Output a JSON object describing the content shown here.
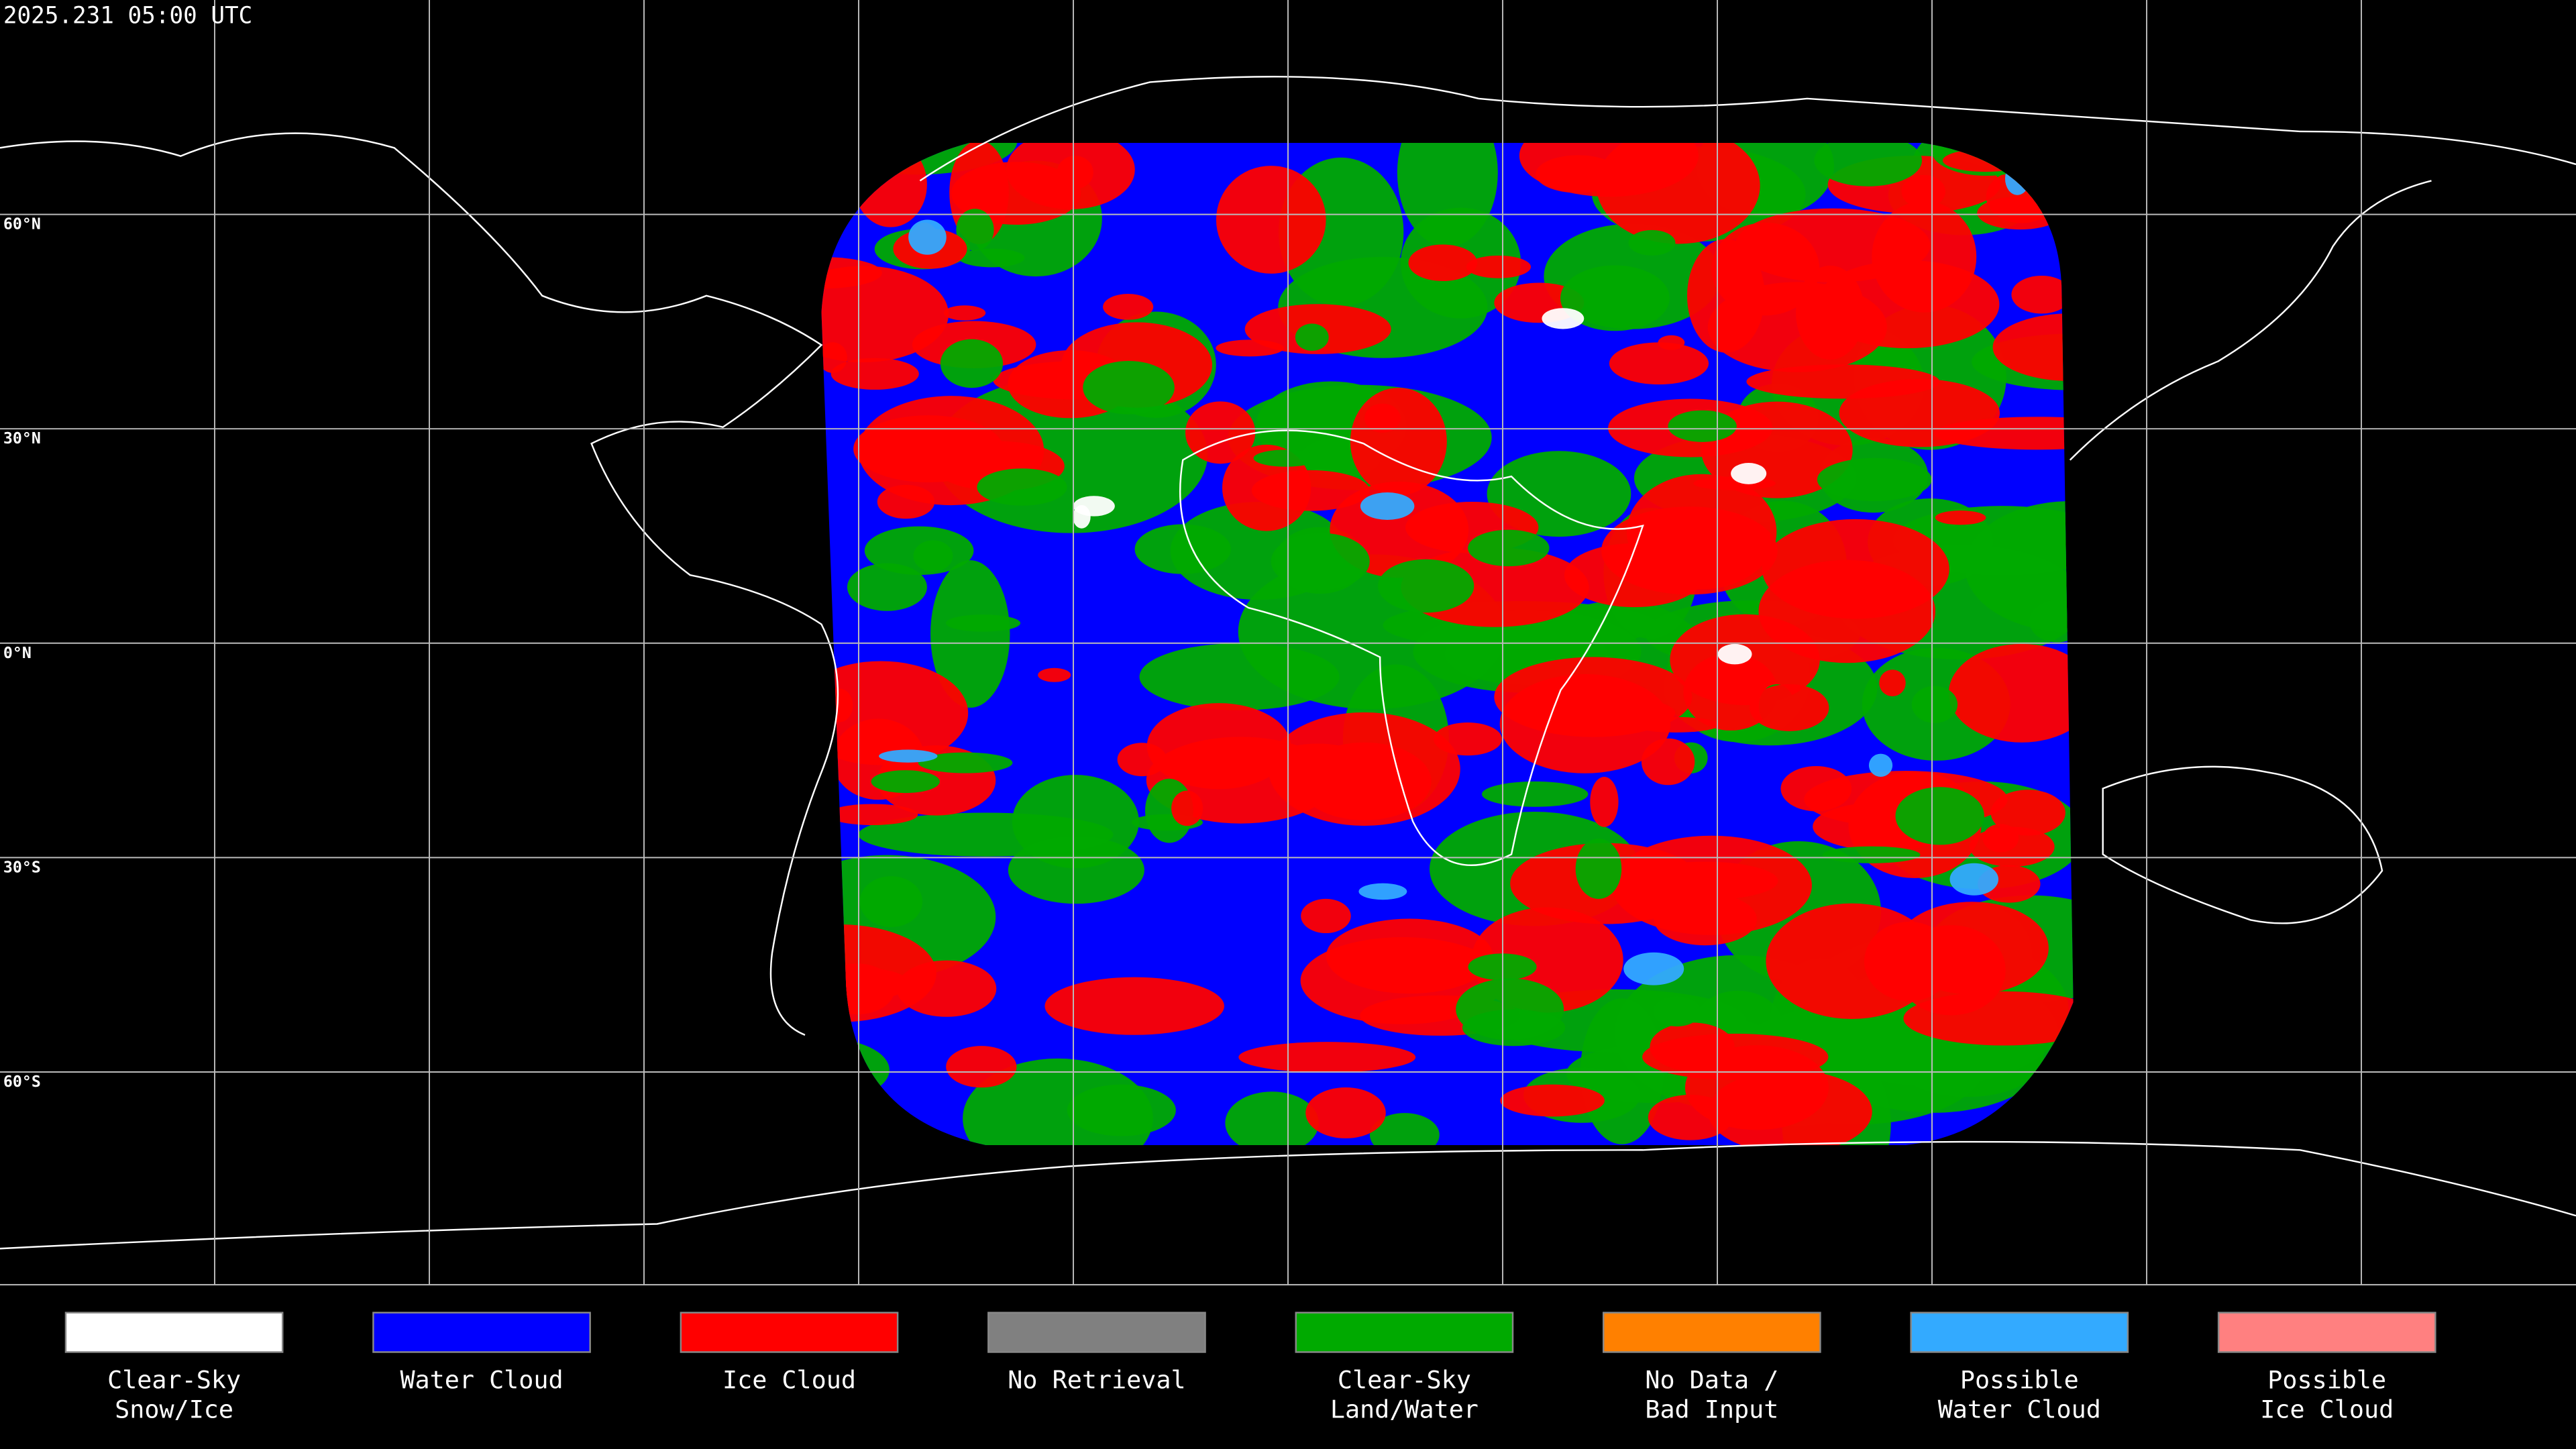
{
  "header": {
    "timestamp": "2025.231 05:00 UTC"
  },
  "map": {
    "latitude_labels": [
      "60°N",
      "30°N",
      "0°N",
      "30°S",
      "60°S"
    ]
  },
  "legend": {
    "items": [
      {
        "label": [
          "Clear-Sky",
          "Snow/Ice"
        ],
        "color": "#ffffff"
      },
      {
        "label": [
          "Water Cloud"
        ],
        "color": "#0000ff"
      },
      {
        "label": [
          "Ice Cloud"
        ],
        "color": "#ff0000"
      },
      {
        "label": [
          "No Retrieval"
        ],
        "color": "#808080"
      },
      {
        "label": [
          "Clear-Sky",
          "Land/Water"
        ],
        "color": "#00aa00"
      },
      {
        "label": [
          "No Data /",
          "Bad Input"
        ],
        "color": "#ff8000"
      },
      {
        "label": [
          "Possible",
          "Water Cloud"
        ],
        "color": "#33aaff"
      },
      {
        "label": [
          "Possible",
          "Ice Cloud"
        ],
        "color": "#ff8080"
      }
    ]
  }
}
